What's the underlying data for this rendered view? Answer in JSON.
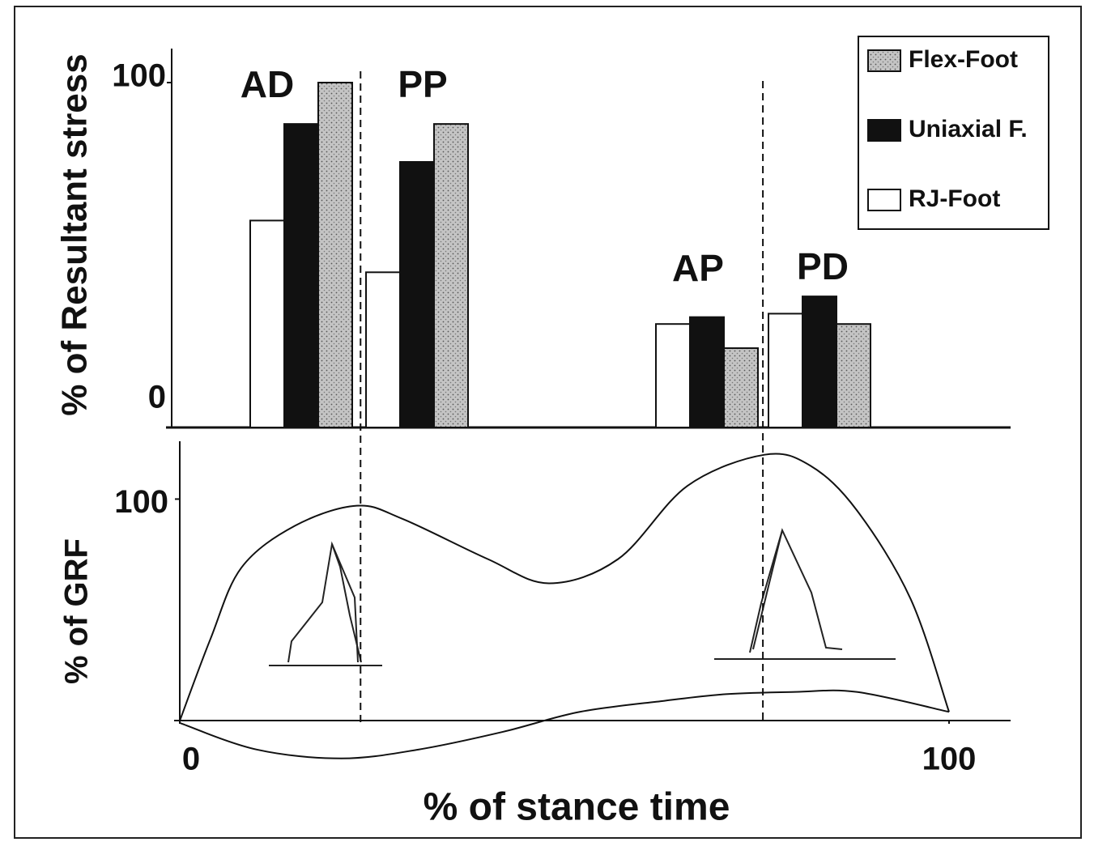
{
  "chart_data": [
    {
      "type": "bar",
      "ylabel": "% of Resultant stress",
      "categories": [
        "AD",
        "PP",
        "AP",
        "PD"
      ],
      "series": [
        {
          "name": "Flex-Foot",
          "color": "#c4c4c4",
          "values": [
            100,
            88,
            23,
            30
          ]
        },
        {
          "name": "Uniaxial F.",
          "color": "#111111",
          "values": [
            88,
            77,
            32,
            38
          ]
        },
        {
          "name": "RJ-Foot",
          "color": "#ffffff",
          "values": [
            60,
            45,
            30,
            33
          ]
        }
      ],
      "ylim": [
        0,
        100
      ],
      "yticks": [
        0,
        100
      ],
      "legend": "top-right"
    },
    {
      "type": "line",
      "ylabel": "% of GRF",
      "xlabel": "% of stance time",
      "series": [
        {
          "color": "#111111",
          "x": [
            0,
            4,
            8,
            15,
            23,
            29,
            40,
            48,
            57,
            66,
            76,
            82,
            88,
            95,
            100
          ],
          "values": [
            0,
            37,
            69,
            88,
            97,
            91,
            73,
            62,
            73,
            106,
            120,
            115,
            95,
            55,
            4
          ]
        },
        {
          "color": "#111111",
          "x": [
            0,
            10,
            21,
            31,
            42,
            52,
            63,
            71,
            80,
            88,
            100
          ],
          "values": [
            -1,
            -13,
            -17,
            -13,
            -5,
            4,
            9,
            12,
            13,
            13,
            4
          ]
        }
      ],
      "xlim": [
        0,
        100
      ],
      "xticks": [
        0,
        100
      ],
      "ylim": [
        -20,
        125
      ],
      "yticks": [
        100
      ],
      "vlines": [
        23.5,
        75.8
      ]
    }
  ]
}
